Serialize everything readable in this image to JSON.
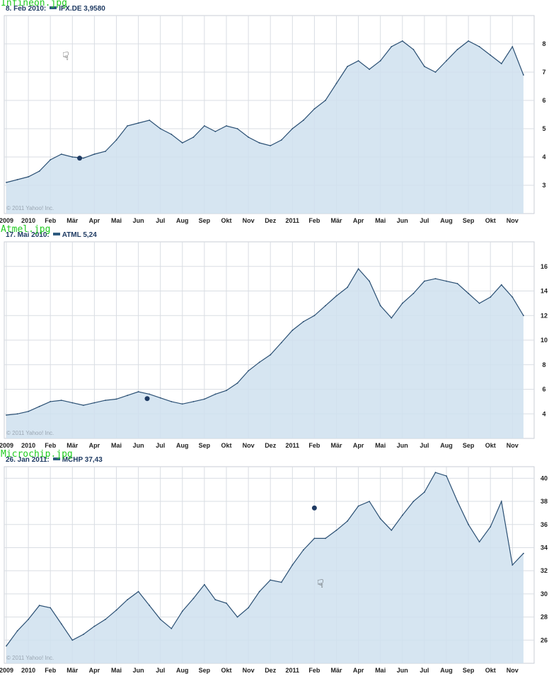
{
  "chart_data": [
    {
      "type": "area",
      "file_label": "Infineon.jpg",
      "header": {
        "date": "8. Feb 2010:",
        "symbol": "IFX.DE 3,9580"
      },
      "copyright": "© 2011 Yahoo! Inc.",
      "x_tick_labels": [
        "2009",
        "2010",
        "Feb",
        "Mär",
        "Apr",
        "Mai",
        "Jun",
        "Jul",
        "Aug",
        "Sep",
        "Okt",
        "Nov",
        "Dez",
        "2011",
        "Feb",
        "Mär",
        "Apr",
        "Mai",
        "Jun",
        "Jul",
        "Aug",
        "Sep",
        "Okt",
        "Nov"
      ],
      "y_ticks": [
        3,
        4,
        5,
        6,
        7,
        8
      ],
      "ylim": [
        2.0,
        9.0
      ],
      "marker": {
        "x": 3.33,
        "y": 3.958
      },
      "series": [
        {
          "x": [
            0,
            0.5,
            1,
            1.5,
            2,
            2.5,
            3,
            3.5,
            4,
            4.5,
            5,
            5.5,
            6,
            6.5,
            7,
            7.5,
            8,
            8.5,
            9,
            9.5,
            10,
            10.5,
            11,
            11.5,
            12,
            12.5,
            13,
            13.5,
            14,
            14.5,
            15,
            15.5,
            16,
            16.5,
            17,
            17.5,
            18,
            18.5,
            19,
            19.5,
            20,
            20.5,
            21,
            21.5,
            22,
            22.5,
            23,
            23.5
          ],
          "values": [
            3.1,
            3.2,
            3.3,
            3.5,
            3.9,
            4.1,
            4.0,
            3.96,
            4.1,
            4.2,
            4.6,
            5.1,
            5.2,
            5.3,
            5.0,
            4.8,
            4.5,
            4.7,
            5.1,
            4.9,
            5.1,
            5.0,
            4.7,
            4.5,
            4.4,
            4.6,
            5.0,
            5.3,
            5.7,
            6.0,
            6.6,
            7.2,
            7.4,
            7.1,
            7.4,
            7.9,
            8.1,
            7.8,
            7.2,
            7.0,
            7.4,
            7.8,
            8.1,
            7.9,
            7.6,
            7.3,
            7.9,
            6.9
          ]
        }
      ]
    },
    {
      "type": "area",
      "file_label": "Atmel.jpg",
      "header": {
        "date": "17. Mai 2010:",
        "symbol": "ATML 5,24"
      },
      "copyright": "© 2011 Yahoo! Inc.",
      "x_tick_labels": [
        "2009",
        "2010",
        "Feb",
        "Mär",
        "Apr",
        "Mai",
        "Jun",
        "Jul",
        "Aug",
        "Sep",
        "Okt",
        "Nov",
        "Dez",
        "2011",
        "Feb",
        "Mär",
        "Apr",
        "Mai",
        "Jun",
        "Jul",
        "Aug",
        "Sep",
        "Okt",
        "Nov"
      ],
      "y_ticks": [
        4,
        6,
        8,
        10,
        12,
        14,
        16
      ],
      "ylim": [
        2.0,
        18.0
      ],
      "marker": {
        "x": 6.4,
        "y": 5.24
      },
      "series": [
        {
          "x": [
            0,
            0.5,
            1,
            1.5,
            2,
            2.5,
            3,
            3.5,
            4,
            4.5,
            5,
            5.5,
            6,
            6.5,
            7,
            7.5,
            8,
            8.5,
            9,
            9.5,
            10,
            10.5,
            11,
            11.5,
            12,
            12.5,
            13,
            13.5,
            14,
            14.5,
            15,
            15.5,
            16,
            16.5,
            17,
            17.5,
            18,
            18.5,
            19,
            19.5,
            20,
            20.5,
            21,
            21.5,
            22,
            22.5,
            23,
            23.5
          ],
          "values": [
            3.9,
            4.0,
            4.2,
            4.6,
            5.0,
            5.1,
            4.9,
            4.7,
            4.9,
            5.1,
            5.2,
            5.5,
            5.8,
            5.6,
            5.3,
            5.0,
            4.8,
            5.0,
            5.2,
            5.6,
            5.9,
            6.5,
            7.5,
            8.2,
            8.8,
            9.8,
            10.8,
            11.5,
            12.0,
            12.8,
            13.6,
            14.3,
            15.8,
            14.8,
            12.8,
            11.8,
            13.0,
            13.8,
            14.8,
            15.0,
            14.8,
            14.6,
            13.8,
            13.0,
            13.5,
            14.5,
            13.5,
            12.0
          ]
        }
      ]
    },
    {
      "type": "area",
      "file_label": "Microchip.jpg",
      "header": {
        "date": "26. Jan 2011:",
        "symbol": "MCHP 37,43"
      },
      "copyright": "© 2011 Yahoo! Inc.",
      "x_tick_labels": [
        "2009",
        "2010",
        "Feb",
        "Mär",
        "Apr",
        "Mai",
        "Jun",
        "Jul",
        "Aug",
        "Sep",
        "Okt",
        "Nov",
        "Dez",
        "2011",
        "Feb",
        "Mär",
        "Apr",
        "Mai",
        "Jun",
        "Jul",
        "Aug",
        "Sep",
        "Okt",
        "Nov"
      ],
      "y_ticks": [
        26,
        28,
        30,
        32,
        34,
        36,
        38,
        40
      ],
      "ylim": [
        24.0,
        41.0
      ],
      "marker": {
        "x": 14.0,
        "y": 37.43
      },
      "series": [
        {
          "x": [
            0,
            0.5,
            1,
            1.5,
            2,
            2.5,
            3,
            3.5,
            4,
            4.5,
            5,
            5.5,
            6,
            6.5,
            7,
            7.5,
            8,
            8.5,
            9,
            9.5,
            10,
            10.5,
            11,
            11.5,
            12,
            12.5,
            13,
            13.5,
            14,
            14.5,
            15,
            15.5,
            16,
            16.5,
            17,
            17.5,
            18,
            18.5,
            19,
            19.5,
            20,
            20.5,
            21,
            21.5,
            22,
            22.5,
            23,
            23.5
          ],
          "values": [
            25.5,
            26.8,
            27.8,
            29.0,
            28.8,
            27.4,
            26.0,
            26.5,
            27.2,
            27.8,
            28.6,
            29.5,
            30.2,
            29.0,
            27.8,
            27.0,
            28.5,
            29.6,
            30.8,
            29.5,
            29.2,
            28.0,
            28.8,
            30.2,
            31.2,
            31.0,
            32.5,
            33.8,
            34.8,
            34.8,
            35.5,
            36.3,
            37.6,
            38.0,
            36.5,
            35.5,
            36.8,
            38.0,
            38.8,
            40.5,
            40.2,
            38.0,
            36.0,
            34.5,
            35.8,
            38.0,
            32.5,
            33.5
          ]
        }
      ]
    }
  ]
}
